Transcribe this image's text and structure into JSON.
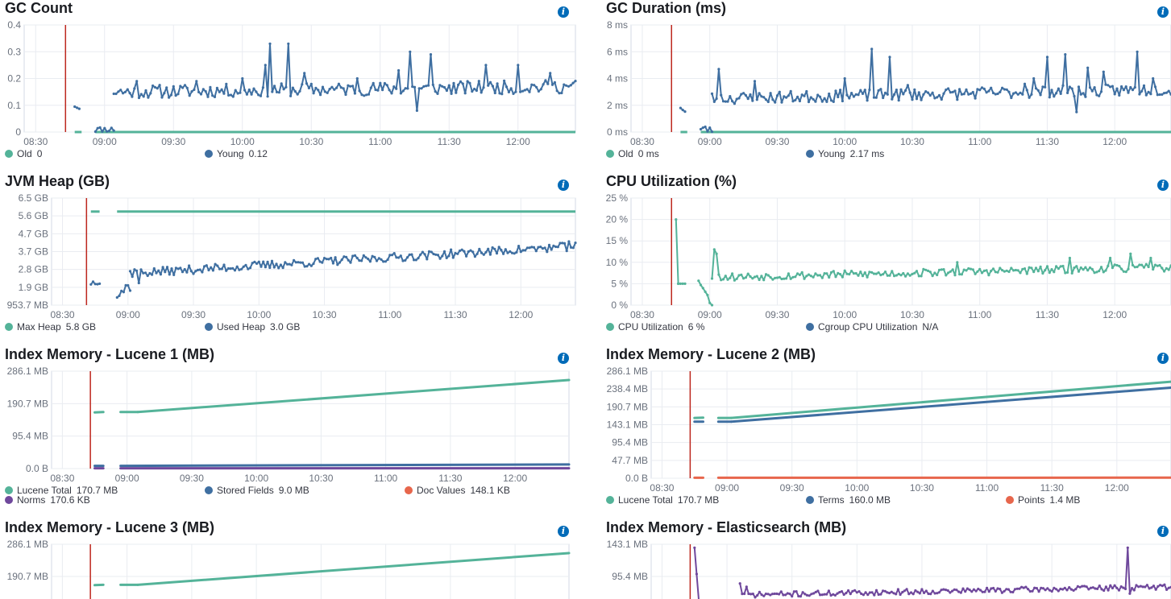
{
  "chart_data": [
    {
      "type": "line",
      "title": "GC Count",
      "x_ticks": [
        "08:30",
        "09:00",
        "09:30",
        "10:00",
        "10:30",
        "11:00",
        "11:30",
        "12:00"
      ],
      "y_ticks": [
        "0",
        "0.1",
        "0.2",
        "0.3",
        "0.4"
      ],
      "ylim": [
        0,
        0.4
      ],
      "xlim_minutes": [
        505,
        745
      ],
      "marker_line_minutes": 523,
      "series": [
        {
          "name": "Old",
          "value": "0",
          "color": "#54b399",
          "type": "flat",
          "y": 0,
          "segments": [
            [
              527,
              530
            ],
            [
              536,
              745
            ]
          ]
        },
        {
          "name": "Young",
          "value": "0.12",
          "color": "#3f6fa1",
          "seed": 11,
          "segments": [
            {
              "start": 527,
              "end": 529,
              "base": 0.1,
              "end_val": 0.09,
              "amp": 0.01
            },
            {
              "start": 536,
              "end": 544,
              "base": 0.01,
              "end_val": 0.01,
              "amp": 0.01
            },
            {
              "start": 544,
              "end": 745,
              "base": 0.15,
              "end_val": 0.17,
              "amp": 0.025,
              "spikes": [
                [
                  554,
                  0.19
                ],
                [
                  580,
                  0.19
                ],
                [
                  600,
                  0.2
                ],
                [
                  610,
                  0.25
                ],
                [
                  612,
                  0.33
                ],
                [
                  620,
                  0.33
                ],
                [
                  627,
                  0.22
                ],
                [
                  650,
                  0.2
                ],
                [
                  668,
                  0.23
                ],
                [
                  673,
                  0.3
                ],
                [
                  676,
                  0.08
                ],
                [
                  682,
                  0.29
                ],
                [
                  706,
                  0.25
                ],
                [
                  720,
                  0.25
                ],
                [
                  734,
                  0.22
                ]
              ]
            }
          ]
        }
      ],
      "legend_columns": 2
    },
    {
      "type": "line",
      "title": "GC Duration (ms)",
      "x_ticks": [
        "08:30",
        "09:00",
        "09:30",
        "10:00",
        "10:30",
        "11:00",
        "11:30",
        "12:00"
      ],
      "y_ticks": [
        "0 ms",
        "2 ms",
        "4 ms",
        "6 ms",
        "8 ms"
      ],
      "ylim": [
        0,
        8
      ],
      "xlim_minutes": [
        505,
        745
      ],
      "marker_line_minutes": 523,
      "series": [
        {
          "name": "Old",
          "value": "0 ms",
          "color": "#54b399",
          "type": "flat",
          "y": 0,
          "segments": [
            [
              527,
              530
            ],
            [
              536,
              745
            ]
          ]
        },
        {
          "name": "Young",
          "value": "2.17 ms",
          "color": "#3f6fa1",
          "seed": 23,
          "segments": [
            {
              "start": 527,
              "end": 529,
              "base": 1.9,
              "end_val": 1.5,
              "amp": 0.2
            },
            {
              "start": 536,
              "end": 541,
              "base": 0.2,
              "end_val": 0.2,
              "amp": 0.3
            },
            {
              "start": 541,
              "end": 745,
              "base": 2.5,
              "end_val": 3.2,
              "amp": 0.45,
              "spikes": [
                [
                  544,
                  4.7
                ],
                [
                  560,
                  3.8
                ],
                [
                  600,
                  4.0
                ],
                [
                  612,
                  6.2
                ],
                [
                  620,
                  5.6
                ],
                [
                  628,
                  3.5
                ],
                [
                  680,
                  3.6
                ],
                [
                  684,
                  4.0
                ],
                [
                  690,
                  5.6
                ],
                [
                  698,
                  5.8
                ],
                [
                  703,
                  1.5
                ],
                [
                  708,
                  4.8
                ],
                [
                  715,
                  4.5
                ],
                [
                  730,
                  6.0
                ],
                [
                  737,
                  4.0
                ]
              ]
            }
          ]
        }
      ],
      "legend_columns": 2
    },
    {
      "type": "line",
      "title": "JVM Heap (GB)",
      "x_ticks": [
        "08:30",
        "09:00",
        "09:30",
        "10:00",
        "10:30",
        "11:00",
        "11:30",
        "12:00"
      ],
      "y_ticks": [
        "953.7 MB",
        "1.9 GB",
        "2.8 GB",
        "3.7 GB",
        "4.7 GB",
        "5.6 GB",
        "6.5 GB"
      ],
      "ylim": [
        0.9537,
        6.5
      ],
      "xlim_minutes": [
        505,
        745
      ],
      "marker_line_minutes": 521,
      "series": [
        {
          "name": "Max Heap",
          "value": "5.8 GB",
          "color": "#54b399",
          "type": "flat",
          "y": 5.8,
          "segments": [
            [
              523,
              527
            ],
            [
              535,
              745
            ]
          ]
        },
        {
          "name": "Used Heap",
          "value": "3.0 GB",
          "color": "#3f6fa1",
          "seed": 37,
          "segments": [
            {
              "start": 523,
              "end": 527,
              "base": 2.1,
              "end_val": 2.2,
              "amp": 0.15
            },
            {
              "start": 535,
              "end": 541,
              "base": 1.5,
              "end_val": 2.0,
              "amp": 0.35
            },
            {
              "start": 541,
              "end": 745,
              "base": 2.6,
              "end_val": 4.0,
              "amp": 0.22,
              "spikes": [
                [
                  543,
                  2.8
                ],
                [
                  545,
                  2.1
                ],
                [
                  742,
                  4.25
                ]
              ]
            }
          ]
        }
      ],
      "legend_columns": 2
    },
    {
      "type": "line",
      "title": "CPU Utilization (%)",
      "x_ticks": [
        "08:30",
        "09:00",
        "09:30",
        "10:00",
        "10:30",
        "11:00",
        "11:30",
        "12:00"
      ],
      "y_ticks": [
        "0 %",
        "5 %",
        "10 %",
        "15 %",
        "20 %",
        "25 %"
      ],
      "ylim": [
        0,
        25
      ],
      "xlim_minutes": [
        505,
        745
      ],
      "marker_line_minutes": 523,
      "series": [
        {
          "name": "CPU Utilization",
          "value": "6 %",
          "color": "#54b399",
          "seed": 53,
          "segments": [
            {
              "start": 525,
              "end": 526,
              "base": 20,
              "end_val": 5,
              "amp": 0
            },
            {
              "start": 526,
              "end": 529,
              "base": 5,
              "end_val": 5,
              "amp": 0
            },
            {
              "start": 535,
              "end": 541,
              "base": 6,
              "end_val": 0,
              "amp": 0.5
            },
            {
              "start": 541,
              "end": 745,
              "base": 6.5,
              "end_val": 8.8,
              "amp": 0.9,
              "spikes": [
                [
                  542,
                  13
                ],
                [
                  543,
                  12
                ],
                [
                  650,
                  10
                ],
                [
                  700,
                  11
                ],
                [
                  718,
                  11
                ],
                [
                  727,
                  12
                ],
                [
                  736,
                  11
                ]
              ]
            }
          ]
        },
        {
          "name": "Cgroup CPU Utilization",
          "value": "N/A",
          "color": "#3f6fa1",
          "type": "none"
        }
      ],
      "legend_columns": 2
    },
    {
      "type": "line",
      "title": "Index Memory - Lucene 1 (MB)",
      "x_ticks": [
        "08:30",
        "09:00",
        "09:30",
        "10:00",
        "10:30",
        "11:00",
        "11:30",
        "12:00"
      ],
      "y_ticks": [
        "0.0 B",
        "95.4 MB",
        "190.7 MB",
        "286.1 MB"
      ],
      "ylim": [
        0,
        286.1
      ],
      "xlim_minutes": [
        505,
        745
      ],
      "marker_line_minutes": 523,
      "series": [
        {
          "name": "Lucene Total",
          "value": "170.7 MB",
          "color": "#54b399",
          "type": "ramp",
          "segments": [
            [
              525,
              529,
              165,
              166
            ],
            [
              537,
              545,
              166,
              166
            ],
            [
              545,
              745,
              166,
              260
            ]
          ]
        },
        {
          "name": "Stored Fields",
          "value": "9.0 MB",
          "color": "#3f6fa1",
          "type": "ramp",
          "segments": [
            [
              525,
              529,
              8,
              8
            ],
            [
              537,
              745,
              8,
              12
            ]
          ]
        },
        {
          "name": "Doc Values",
          "value": "148.1 KB",
          "color": "#e7664c",
          "type": "none"
        },
        {
          "name": "Norms",
          "value": "170.6 KB",
          "color": "#6f489c",
          "type": "ramp",
          "segments": [
            [
              525,
              529,
              1,
              1
            ],
            [
              537,
              745,
              1,
              1
            ]
          ]
        }
      ],
      "legend_columns": 3
    },
    {
      "type": "line",
      "title": "Index Memory - Lucene 2 (MB)",
      "x_ticks": [
        "08:30",
        "09:00",
        "09:30",
        "10:00",
        "10:30",
        "11:00",
        "11:30",
        "12:00"
      ],
      "y_ticks": [
        "0.0 B",
        "47.7 MB",
        "95.4 MB",
        "143.1 MB",
        "190.7 MB",
        "238.4 MB",
        "286.1 MB"
      ],
      "ylim": [
        0,
        286.1
      ],
      "xlim_minutes": [
        505,
        745
      ],
      "marker_line_minutes": 523,
      "series": [
        {
          "name": "Lucene Total",
          "value": "170.7 MB",
          "color": "#54b399",
          "type": "ramp",
          "segments": [
            [
              525,
              529,
              161,
              162
            ],
            [
              536,
              542,
              161,
              161
            ],
            [
              542,
              745,
              161,
              258
            ]
          ]
        },
        {
          "name": "Terms",
          "value": "160.0 MB",
          "color": "#3f6fa1",
          "type": "ramp",
          "segments": [
            [
              525,
              529,
              151,
              151
            ],
            [
              536,
              542,
              151,
              151
            ],
            [
              542,
              745,
              151,
              242
            ]
          ]
        },
        {
          "name": "Points",
          "value": "1.4 MB",
          "color": "#e7664c",
          "type": "ramp",
          "segments": [
            [
              525,
              529,
              1.4,
              1.4
            ],
            [
              536,
              745,
              1.4,
              1.5
            ]
          ]
        }
      ],
      "legend_columns": 3
    },
    {
      "type": "line",
      "title": "Index Memory - Lucene 3 (MB)",
      "x_ticks": [],
      "y_ticks": [
        "190.7 MB",
        "286.1 MB"
      ],
      "ylim": [
        0,
        286.1
      ],
      "xlim_minutes": [
        505,
        745
      ],
      "marker_line_minutes": 523,
      "series": [
        {
          "name": "",
          "value": "",
          "color": "#54b399",
          "type": "ramp",
          "segments": [
            [
              525,
              529,
              165,
              166
            ],
            [
              537,
              545,
              166,
              166
            ],
            [
              545,
              745,
              166,
              260
            ]
          ]
        }
      ],
      "legend_columns": 0
    },
    {
      "type": "line",
      "title": "Index Memory - Elasticsearch (MB)",
      "x_ticks": [],
      "y_ticks": [
        "95.4 MB",
        "143.1 MB"
      ],
      "ylim": [
        0,
        143.1
      ],
      "xlim_minutes": [
        505,
        745
      ],
      "marker_line_minutes": 523,
      "series": [
        {
          "name": "",
          "value": "",
          "color": "#6f489c",
          "seed": 71,
          "segments": [
            {
              "start": 525,
              "end": 527,
              "base": 138,
              "end_val": 60,
              "amp": 0
            },
            {
              "start": 546,
              "end": 745,
              "base": 68,
              "end_val": 80,
              "amp": 4,
              "spikes": [
                [
                  546,
                  85
                ],
                [
                  549,
                  80
                ],
                [
                  725,
                  138
                ],
                [
                  726,
                  70
                ]
              ]
            }
          ]
        }
      ],
      "legend_columns": 0
    }
  ]
}
